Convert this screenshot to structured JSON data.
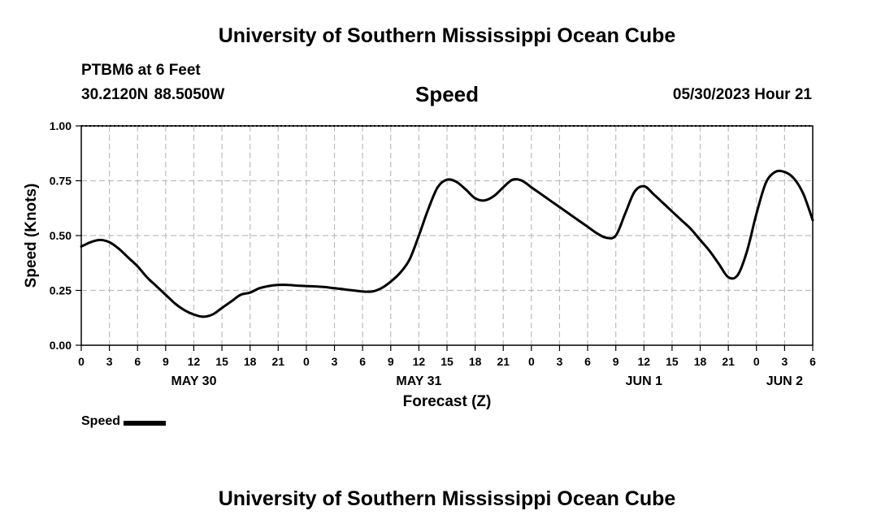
{
  "header": {
    "title": "University of Southern Mississippi Ocean Cube",
    "station": "PTBM6 at 6 Feet",
    "coordinates": "30.2120N  88.5050W",
    "parameter": "Speed",
    "timestamp": "05/30/2023 Hour 21"
  },
  "footer": {
    "title": "University of Southern Mississippi Ocean Cube"
  },
  "legend": {
    "label": "Speed"
  },
  "chart_data": {
    "type": "line",
    "title": "Speed",
    "xlabel": "Forecast (Z)",
    "ylabel": "Speed (Knots)",
    "xlim": [
      0,
      78
    ],
    "ylim": [
      0,
      1
    ],
    "x_unit": "hours from 00Z May 30",
    "grid": true,
    "legend_position": "bottom-left",
    "yticks": [
      {
        "value": 0,
        "label": "0.00"
      },
      {
        "value": 0.25,
        "label": "0.25"
      },
      {
        "value": 0.5,
        "label": "0.50"
      },
      {
        "value": 0.75,
        "label": "0.75"
      },
      {
        "value": 1,
        "label": "1.00"
      }
    ],
    "xticks": [
      {
        "value": 0,
        "label": "0"
      },
      {
        "value": 3,
        "label": "3"
      },
      {
        "value": 6,
        "label": "6"
      },
      {
        "value": 9,
        "label": "9"
      },
      {
        "value": 12,
        "label": "12"
      },
      {
        "value": 15,
        "label": "15"
      },
      {
        "value": 18,
        "label": "18"
      },
      {
        "value": 21,
        "label": "21"
      },
      {
        "value": 24,
        "label": "0"
      },
      {
        "value": 27,
        "label": "3"
      },
      {
        "value": 30,
        "label": "6"
      },
      {
        "value": 33,
        "label": "9"
      },
      {
        "value": 36,
        "label": "12"
      },
      {
        "value": 39,
        "label": "15"
      },
      {
        "value": 42,
        "label": "18"
      },
      {
        "value": 45,
        "label": "21"
      },
      {
        "value": 48,
        "label": "0"
      },
      {
        "value": 51,
        "label": "3"
      },
      {
        "value": 54,
        "label": "6"
      },
      {
        "value": 57,
        "label": "9"
      },
      {
        "value": 60,
        "label": "12"
      },
      {
        "value": 63,
        "label": "15"
      },
      {
        "value": 66,
        "label": "18"
      },
      {
        "value": 69,
        "label": "21"
      },
      {
        "value": 72,
        "label": "0"
      },
      {
        "value": 75,
        "label": "3"
      },
      {
        "value": 78,
        "label": "6"
      }
    ],
    "date_labels": [
      {
        "value": 12,
        "label": "MAY 30"
      },
      {
        "value": 36,
        "label": "MAY 31"
      },
      {
        "value": 60,
        "label": "JUN 1"
      },
      {
        "value": 75,
        "label": "JUN 2"
      }
    ],
    "series": [
      {
        "name": "Speed",
        "color": "#000000",
        "x": [
          0,
          1,
          2,
          3,
          4,
          5,
          6,
          7,
          8,
          9,
          10,
          11,
          12,
          13,
          14,
          15,
          16,
          17,
          18,
          19,
          20,
          21,
          22,
          23,
          24,
          25,
          26,
          27,
          28,
          29,
          30,
          31,
          32,
          33,
          34,
          35,
          36,
          37,
          38,
          39,
          40,
          41,
          42,
          43,
          44,
          45,
          46,
          47,
          48,
          49,
          50,
          51,
          52,
          53,
          54,
          55,
          56,
          57,
          58,
          59,
          60,
          61,
          62,
          63,
          64,
          65,
          66,
          67,
          68,
          69,
          70,
          71,
          72,
          73,
          74,
          75,
          76,
          77,
          78
        ],
        "values": [
          0.45,
          0.47,
          0.48,
          0.47,
          0.44,
          0.4,
          0.36,
          0.31,
          0.27,
          0.23,
          0.19,
          0.16,
          0.14,
          0.13,
          0.14,
          0.17,
          0.2,
          0.23,
          0.24,
          0.26,
          0.27,
          0.275,
          0.275,
          0.272,
          0.27,
          0.268,
          0.265,
          0.26,
          0.255,
          0.25,
          0.245,
          0.245,
          0.26,
          0.29,
          0.33,
          0.39,
          0.5,
          0.62,
          0.72,
          0.755,
          0.745,
          0.71,
          0.67,
          0.66,
          0.68,
          0.72,
          0.755,
          0.75,
          0.72,
          0.69,
          0.66,
          0.63,
          0.6,
          0.57,
          0.54,
          0.51,
          0.49,
          0.5,
          0.6,
          0.7,
          0.725,
          0.69,
          0.65,
          0.61,
          0.57,
          0.53,
          0.48,
          0.43,
          0.37,
          0.31,
          0.32,
          0.43,
          0.6,
          0.74,
          0.79,
          0.79,
          0.76,
          0.69,
          0.57
        ]
      }
    ]
  }
}
